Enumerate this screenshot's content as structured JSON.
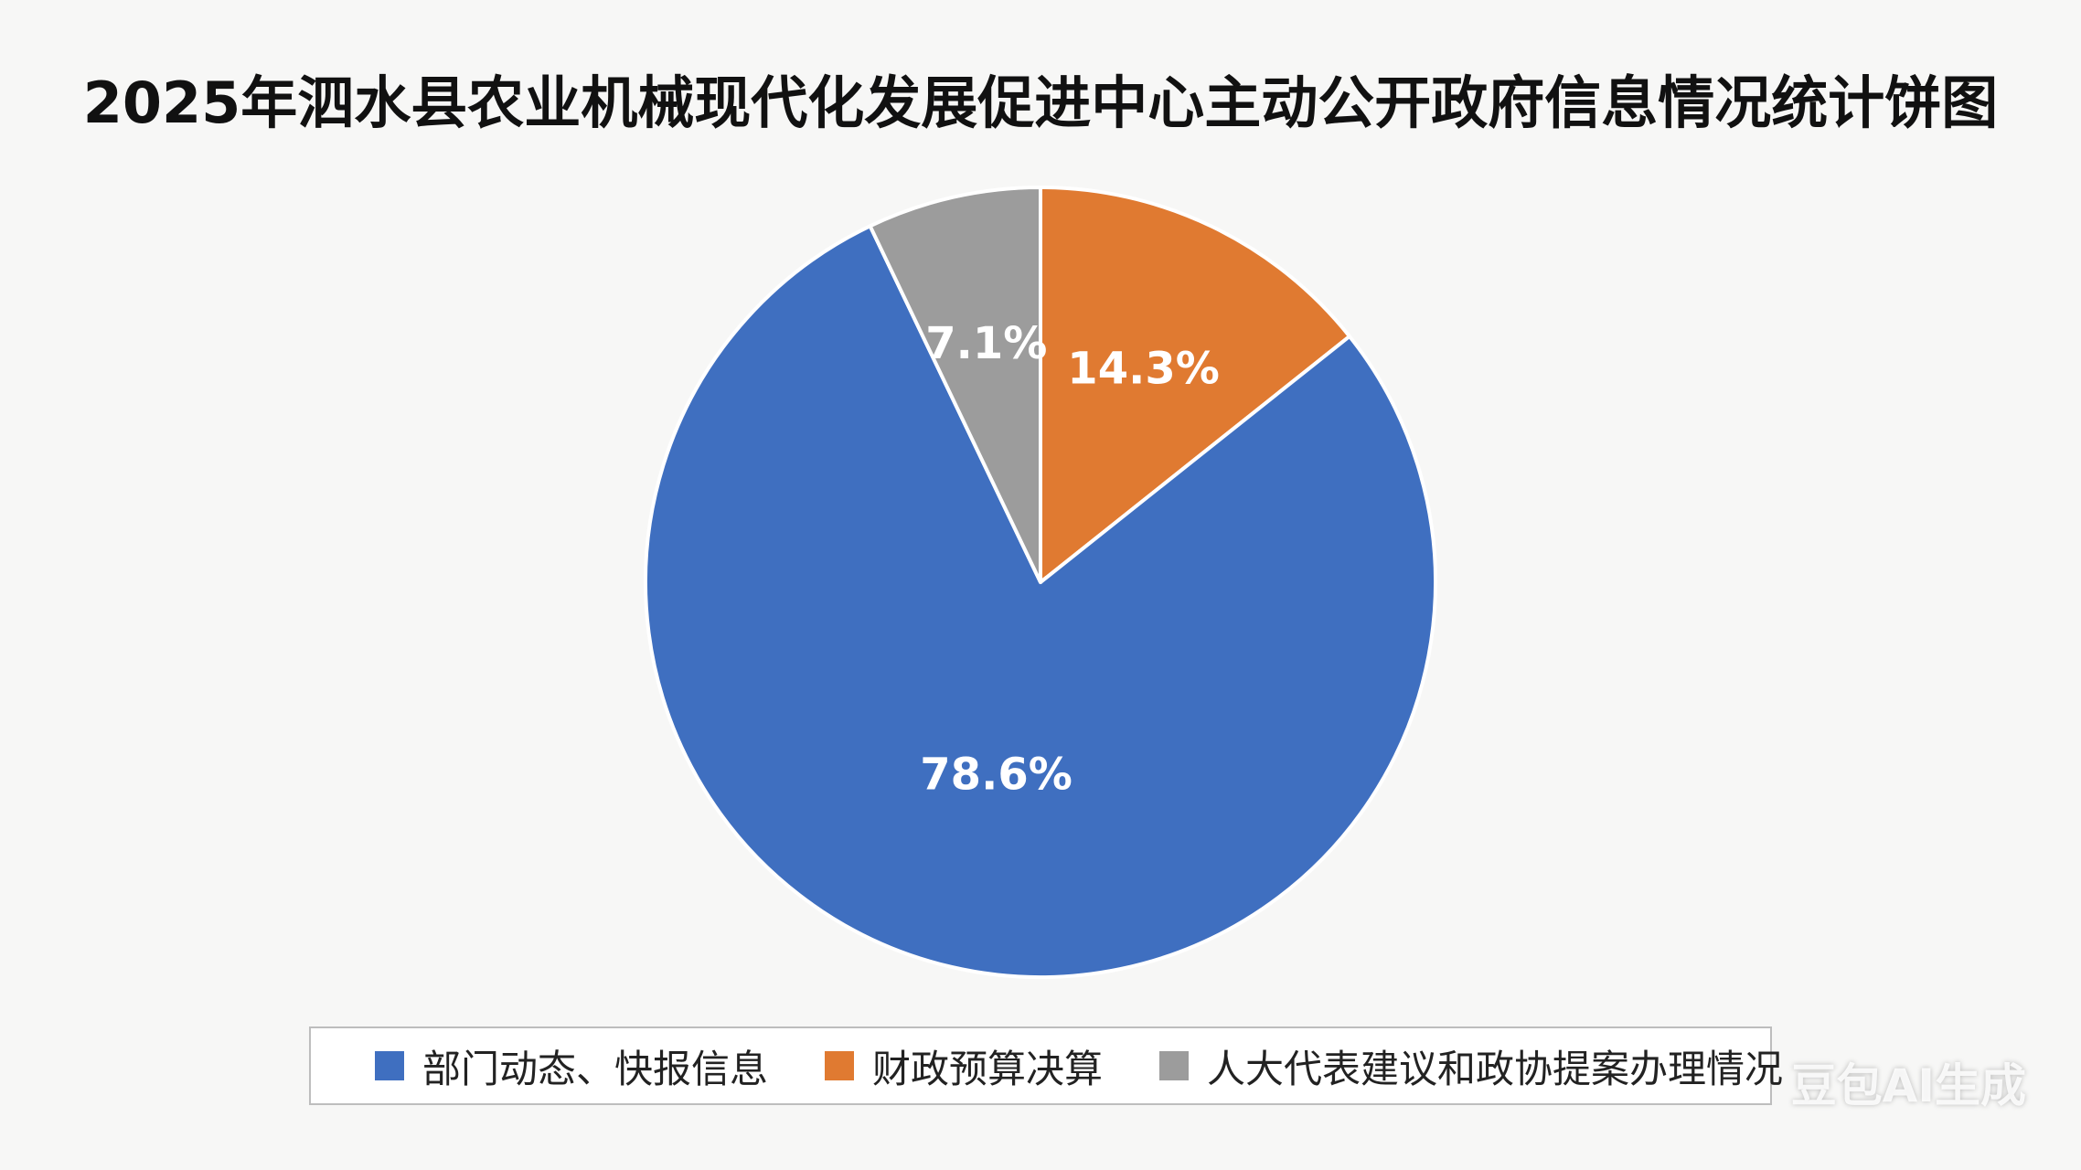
{
  "chart_data": {
    "type": "pie",
    "title": "2025年泗水县农业机械现代化发展促进中心主动公开政府信息情况统计饼图",
    "slices": [
      {
        "label": "财政预算决算",
        "value": 14.3,
        "display": "14.3%",
        "color": "#e07a31"
      },
      {
        "label": "部门动态、快报信息",
        "value": 78.6,
        "display": "78.6%",
        "color": "#3f6fc0"
      },
      {
        "label": "人大代表建议和政协提案办理情况",
        "value": 7.1,
        "display": "7.1%",
        "color": "#9c9c9c"
      }
    ],
    "legend": {
      "position": "bottom",
      "order": [
        "部门动态、快报信息",
        "财政预算决算",
        "人大代表建议和政协提案办理情况"
      ]
    }
  },
  "legend_items": [
    {
      "label": "部门动态、快报信息",
      "color": "#3f6fc0"
    },
    {
      "label": "财政预算决算",
      "color": "#e07a31"
    },
    {
      "label": "人大代表建议和政协提案办理情况",
      "color": "#9c9c9c"
    }
  ],
  "watermark": "豆包AI生成"
}
